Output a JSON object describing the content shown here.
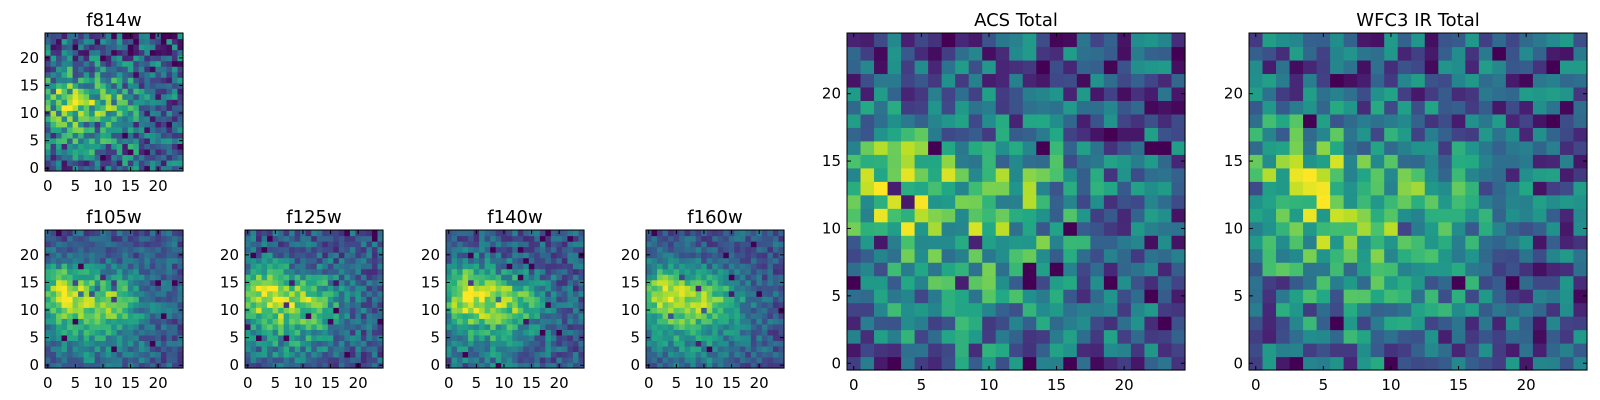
{
  "colormap": "viridis",
  "charts": [
    {
      "title": "f814w",
      "type": "heatmap",
      "xlim": [
        0,
        25
      ],
      "ylim": [
        0,
        25
      ],
      "xticks": [
        0,
        5,
        10,
        15,
        20
      ],
      "yticks": [
        0,
        5,
        10,
        15,
        20
      ],
      "texture": 0.62,
      "blob_weight": 0.7,
      "seed": 11
    },
    {
      "title": "f105w",
      "type": "heatmap",
      "xlim": [
        0,
        25
      ],
      "ylim": [
        0,
        25
      ],
      "xticks": [
        0,
        5,
        10,
        15,
        20
      ],
      "yticks": [
        0,
        5,
        10,
        15,
        20
      ],
      "texture": 0.32,
      "blob_weight": 1.0,
      "seed": 23
    },
    {
      "title": "f125w",
      "type": "heatmap",
      "xlim": [
        0,
        25
      ],
      "ylim": [
        0,
        25
      ],
      "xticks": [
        0,
        5,
        10,
        15,
        20
      ],
      "yticks": [
        0,
        5,
        10,
        15,
        20
      ],
      "texture": 0.38,
      "blob_weight": 1.0,
      "seed": 37
    },
    {
      "title": "f140w",
      "type": "heatmap",
      "xlim": [
        0,
        25
      ],
      "ylim": [
        0,
        25
      ],
      "xticks": [
        0,
        5,
        10,
        15,
        20
      ],
      "yticks": [
        0,
        5,
        10,
        15,
        20
      ],
      "texture": 0.36,
      "blob_weight": 1.0,
      "seed": 41
    },
    {
      "title": "f160w",
      "type": "heatmap",
      "xlim": [
        0,
        25
      ],
      "ylim": [
        0,
        25
      ],
      "xticks": [
        0,
        5,
        10,
        15,
        20
      ],
      "yticks": [
        0,
        5,
        10,
        15,
        20
      ],
      "texture": 0.3,
      "blob_weight": 1.0,
      "seed": 53
    },
    {
      "title": "ACS Total",
      "type": "heatmap",
      "xlim": [
        0,
        25
      ],
      "ylim": [
        0,
        25
      ],
      "xticks": [
        0,
        5,
        10,
        15,
        20
      ],
      "yticks": [
        0,
        5,
        10,
        15,
        20
      ],
      "texture": 0.55,
      "blob_weight": 0.8,
      "seed": 67
    },
    {
      "title": "WFC3 IR Total",
      "type": "heatmap",
      "xlim": [
        0,
        25
      ],
      "ylim": [
        0,
        25
      ],
      "xticks": [
        0,
        5,
        10,
        15,
        20
      ],
      "yticks": [
        0,
        5,
        10,
        15,
        20
      ],
      "texture": 0.55,
      "blob_weight": 0.8,
      "seed": 79
    }
  ]
}
